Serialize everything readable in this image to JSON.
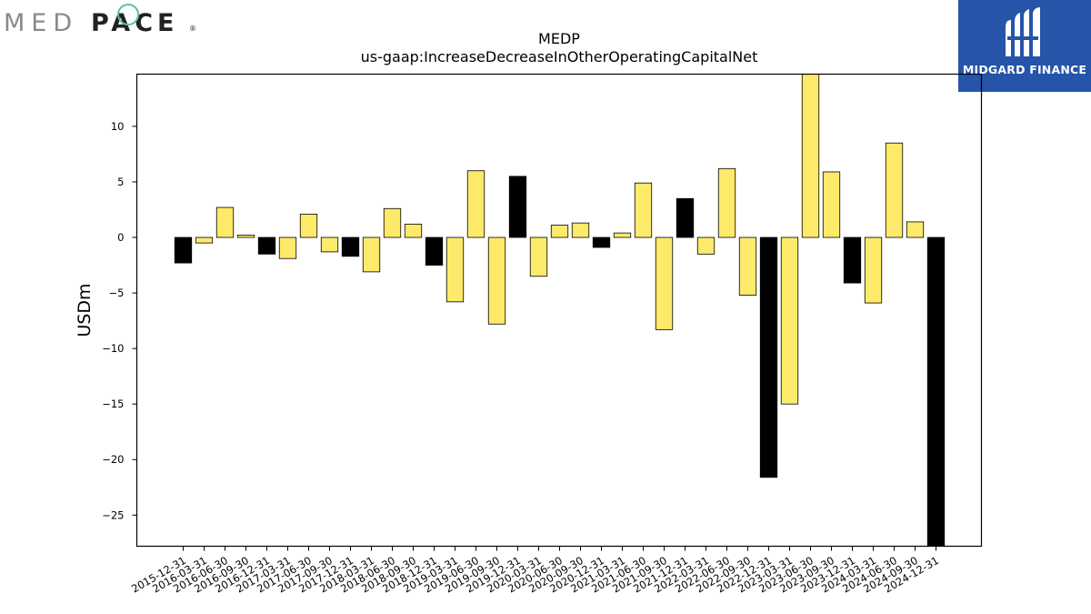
{
  "logos": {
    "left_text_light": "MED",
    "left_text_bold": "PACE",
    "left_mark": "®",
    "right_text": "MIDGARD FINANCE",
    "right_icon": "midgard-m-logo-icon",
    "brand_blue": "#2554a8"
  },
  "chart_data": {
    "type": "bar",
    "title": "MEDP",
    "subtitle": "us-gaap:IncreaseDecreaseInOtherOperatingCapitalNet",
    "ylabel": "USDm",
    "xlabel": "",
    "ylim": [
      -27.8,
      14.7
    ],
    "yticks": [
      10,
      5,
      0,
      -5,
      -10,
      -15,
      -20,
      -25
    ],
    "grid": false,
    "colors": {
      "quarterly": "#fde96a",
      "fiscal_year_end": "#000000"
    },
    "categories": [
      "2015-12-31",
      "2016-03-31",
      "2016-06-30",
      "2016-09-30",
      "2016-12-31",
      "2017-03-31",
      "2017-06-30",
      "2017-09-30",
      "2017-12-31",
      "2018-03-31",
      "2018-06-30",
      "2018-09-30",
      "2018-12-31",
      "2019-03-31",
      "2019-06-30",
      "2019-09-30",
      "2019-12-31",
      "2020-03-31",
      "2020-06-30",
      "2020-09-30",
      "2020-12-31",
      "2021-03-31",
      "2021-06-30",
      "2021-09-30",
      "2021-12-31",
      "2022-03-31",
      "2022-06-30",
      "2022-09-30",
      "2022-12-31",
      "2023-03-31",
      "2023-06-30",
      "2023-09-30",
      "2023-12-31",
      "2024-03-31",
      "2024-06-30",
      "2024-09-30",
      "2024-12-31"
    ],
    "values": [
      -2.3,
      -0.5,
      2.7,
      0.2,
      -1.5,
      -1.9,
      2.1,
      -1.3,
      -1.7,
      -3.1,
      2.6,
      1.2,
      -2.5,
      -5.8,
      6.0,
      -7.8,
      5.5,
      -3.5,
      1.1,
      1.3,
      -0.9,
      0.4,
      4.9,
      -8.3,
      3.5,
      -1.5,
      6.2,
      -5.2,
      -21.6,
      -15.0,
      15.0,
      5.9,
      -4.1,
      -5.9,
      8.5,
      1.4,
      -28.0
    ],
    "bar_colors": [
      "black",
      "yellow",
      "yellow",
      "yellow",
      "black",
      "yellow",
      "yellow",
      "yellow",
      "black",
      "yellow",
      "yellow",
      "yellow",
      "black",
      "yellow",
      "yellow",
      "yellow",
      "black",
      "yellow",
      "yellow",
      "yellow",
      "black",
      "yellow",
      "yellow",
      "yellow",
      "black",
      "yellow",
      "yellow",
      "yellow",
      "black",
      "yellow",
      "yellow",
      "yellow",
      "black",
      "yellow",
      "yellow",
      "yellow",
      "black"
    ]
  }
}
